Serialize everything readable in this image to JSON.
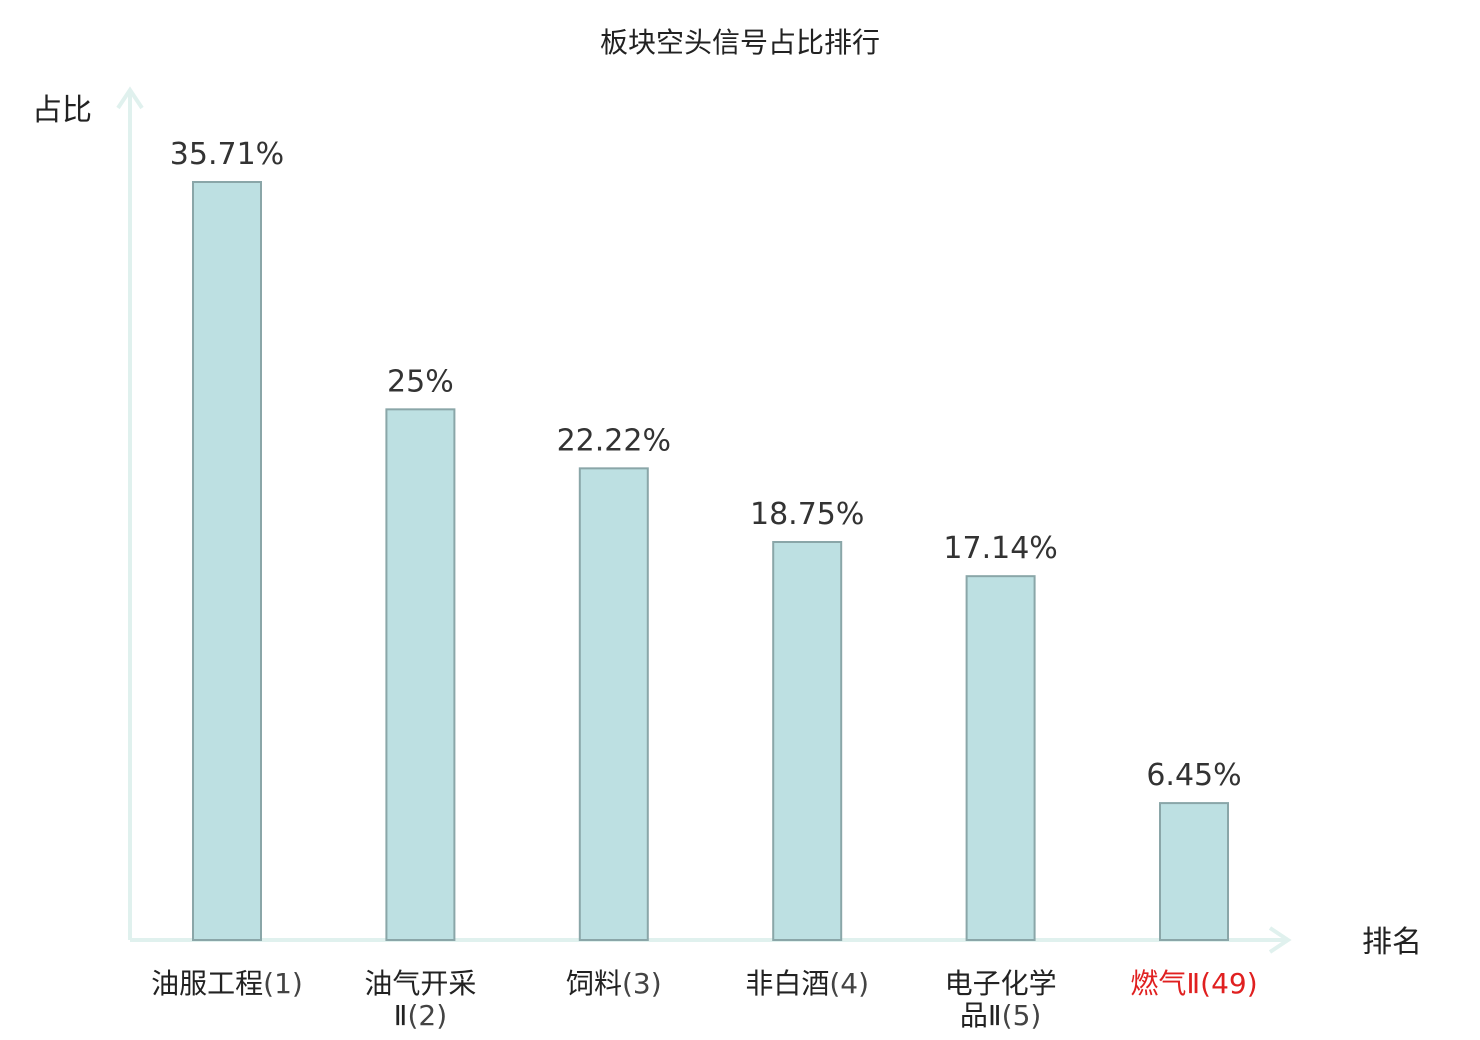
{
  "chart_data": {
    "type": "bar",
    "title": "板块空头信号占比排行",
    "xlabel": "排名",
    "ylabel": "占比",
    "ylim": [
      0,
      40
    ],
    "categories": [
      {
        "name": "油服工程",
        "rank": "(1)",
        "highlight": false
      },
      {
        "name": "油气开采Ⅱ",
        "rank": "(2)",
        "highlight": false
      },
      {
        "name": "饲料",
        "rank": "(3)",
        "highlight": false
      },
      {
        "name": "非白酒",
        "rank": "(4)",
        "highlight": false
      },
      {
        "name": "电子化学品Ⅱ",
        "rank": "(5)",
        "highlight": false
      },
      {
        "name": "燃气Ⅱ",
        "rank": "(49)",
        "highlight": true
      }
    ],
    "values": [
      35.71,
      25,
      22.22,
      18.75,
      17.14,
      6.45
    ],
    "value_labels": [
      "35.71%",
      "25%",
      "22.22%",
      "18.75%",
      "17.14%",
      "6.45%"
    ],
    "colors": {
      "bar_fill": "#bde0e2",
      "bar_stroke": "#8aa6a8",
      "axis": "#e0f1ee",
      "highlight_label": "#e02020",
      "text": "#222222"
    },
    "grid": false
  }
}
